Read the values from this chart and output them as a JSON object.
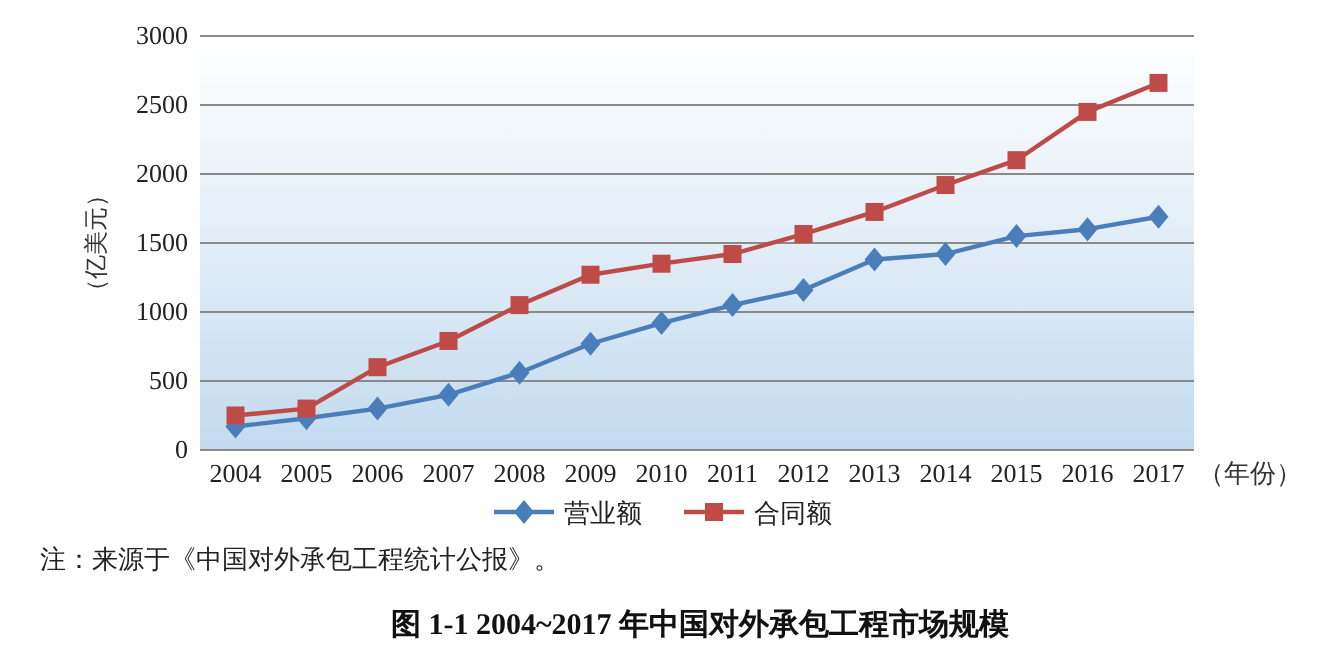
{
  "chart_data": {
    "type": "line",
    "title": "图 1-1 2004~2017 年中国对外承包工程市场规模",
    "xlabel": "（年份）",
    "ylabel": "（亿美元）",
    "categories": [
      "2004",
      "2005",
      "2006",
      "2007",
      "2008",
      "2009",
      "2010",
      "2011",
      "2012",
      "2013",
      "2014",
      "2015",
      "2016",
      "2017"
    ],
    "series": [
      {
        "name": "营业额",
        "color": "#4a7ebb",
        "marker": "diamond",
        "values": [
          170,
          230,
          300,
          400,
          560,
          770,
          920,
          1050,
          1160,
          1380,
          1420,
          1550,
          1600,
          1690
        ]
      },
      {
        "name": "合同额",
        "color": "#be4b48",
        "marker": "square",
        "values": [
          250,
          300,
          600,
          790,
          1050,
          1270,
          1350,
          1420,
          1565,
          1725,
          1920,
          2100,
          2450,
          2660
        ]
      }
    ],
    "ylim": [
      0,
      3000
    ],
    "yticks": [
      0,
      500,
      1000,
      1500,
      2000,
      2500,
      3000
    ],
    "grid": "y",
    "legend": "bottom",
    "line_style": "solid",
    "annotations": [
      "注：来源于《中国对外承包工程统计公报》。"
    ]
  }
}
